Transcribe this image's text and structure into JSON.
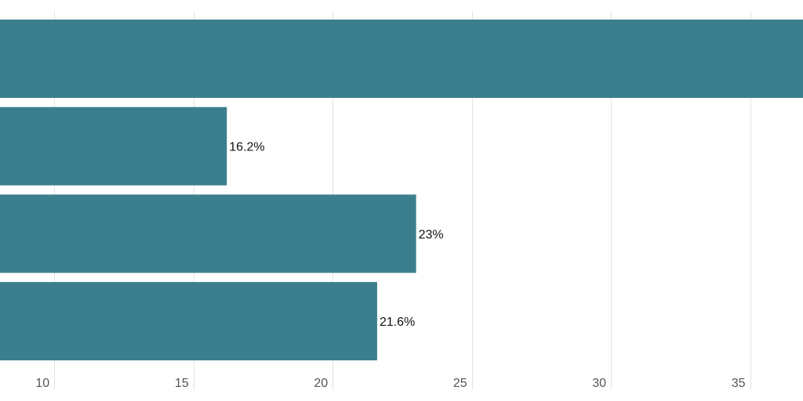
{
  "chart_data": {
    "type": "bar",
    "orientation": "horizontal",
    "title": "",
    "xlabel": "",
    "ylabel": "",
    "x_ticks": [
      10,
      15,
      20,
      25,
      30,
      35
    ],
    "xlim": [
      8.05,
      36.9
    ],
    "grid": true,
    "bar_color": "#3b7f8e",
    "series": [
      {
        "values": [
          38.5,
          16.2,
          23.0,
          21.6
        ],
        "labels": [
          "",
          "16.2%",
          "23%",
          "21.6%"
        ]
      }
    ]
  }
}
